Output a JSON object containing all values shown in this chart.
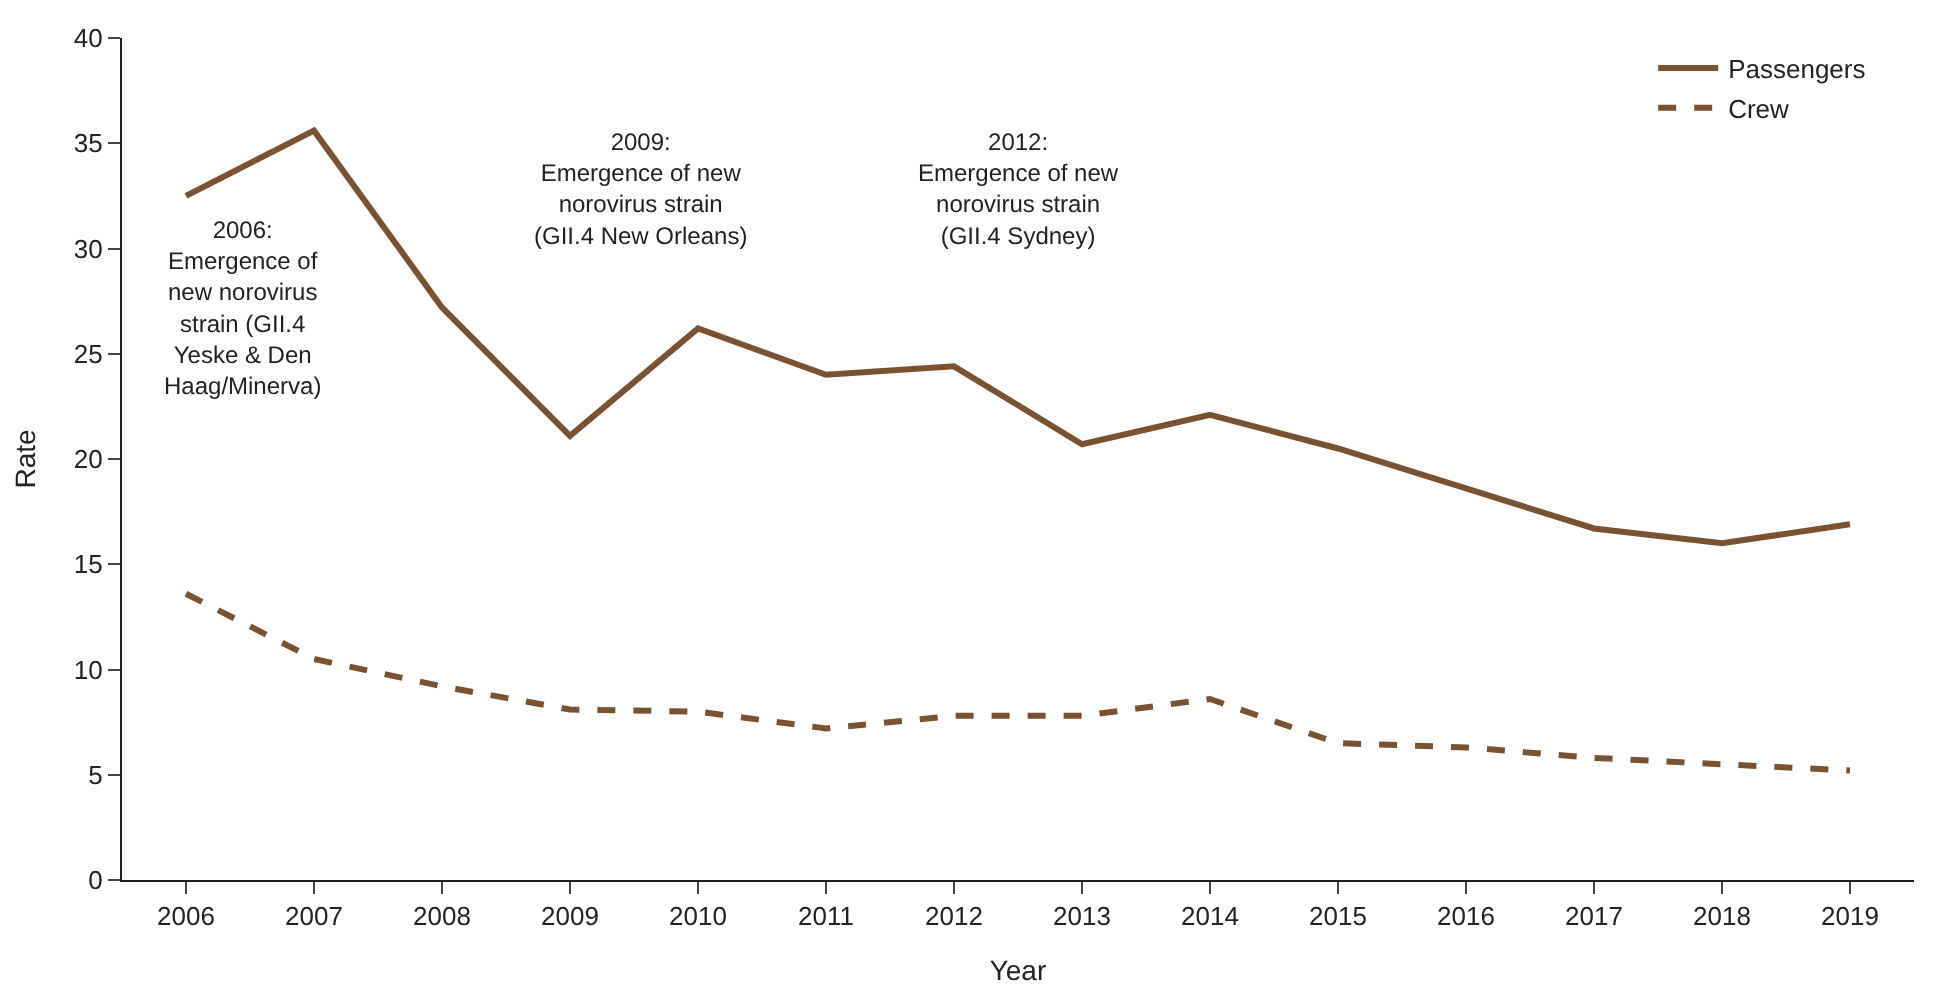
{
  "chart_data": {
    "type": "line",
    "xlabel": "Year",
    "ylabel": "Rate",
    "x": [
      2006,
      2007,
      2008,
      2009,
      2010,
      2011,
      2012,
      2013,
      2014,
      2015,
      2016,
      2017,
      2018,
      2019
    ],
    "series": [
      {
        "name": "Passengers",
        "color": "#7b5230",
        "line_style": "solid",
        "values": [
          32.5,
          35.6,
          27.2,
          21.1,
          26.2,
          24.0,
          24.4,
          20.7,
          22.1,
          20.5,
          18.6,
          16.7,
          16.0,
          16.9
        ]
      },
      {
        "name": "Crew",
        "color": "#7b5230",
        "line_style": "dashed",
        "values": [
          13.6,
          10.5,
          9.2,
          8.1,
          8.0,
          7.2,
          7.8,
          7.8,
          8.6,
          6.5,
          6.3,
          5.8,
          5.5,
          5.2
        ]
      }
    ],
    "xlim": [
      2005.5,
      2019.5
    ],
    "xticks": [
      2006,
      2007,
      2008,
      2009,
      2010,
      2011,
      2012,
      2013,
      2014,
      2015,
      2016,
      2017,
      2018,
      2019
    ],
    "ylim": [
      0,
      40
    ],
    "yticks": [
      0,
      5,
      10,
      15,
      20,
      25,
      30,
      35,
      40
    ],
    "legend": "top right",
    "marker": "none",
    "annotations": [
      "2006:\nEmergence of\nnew norovirus\nstrain (GII.4\nYeske & Den\nHaag/Minerva)",
      "2009:\nEmergence of new\nnorovirus strain\n(GII.4 New Orleans)",
      "2012:\nEmergence of new\nnorovirus strain\n(GII.4 Sydney)"
    ]
  }
}
